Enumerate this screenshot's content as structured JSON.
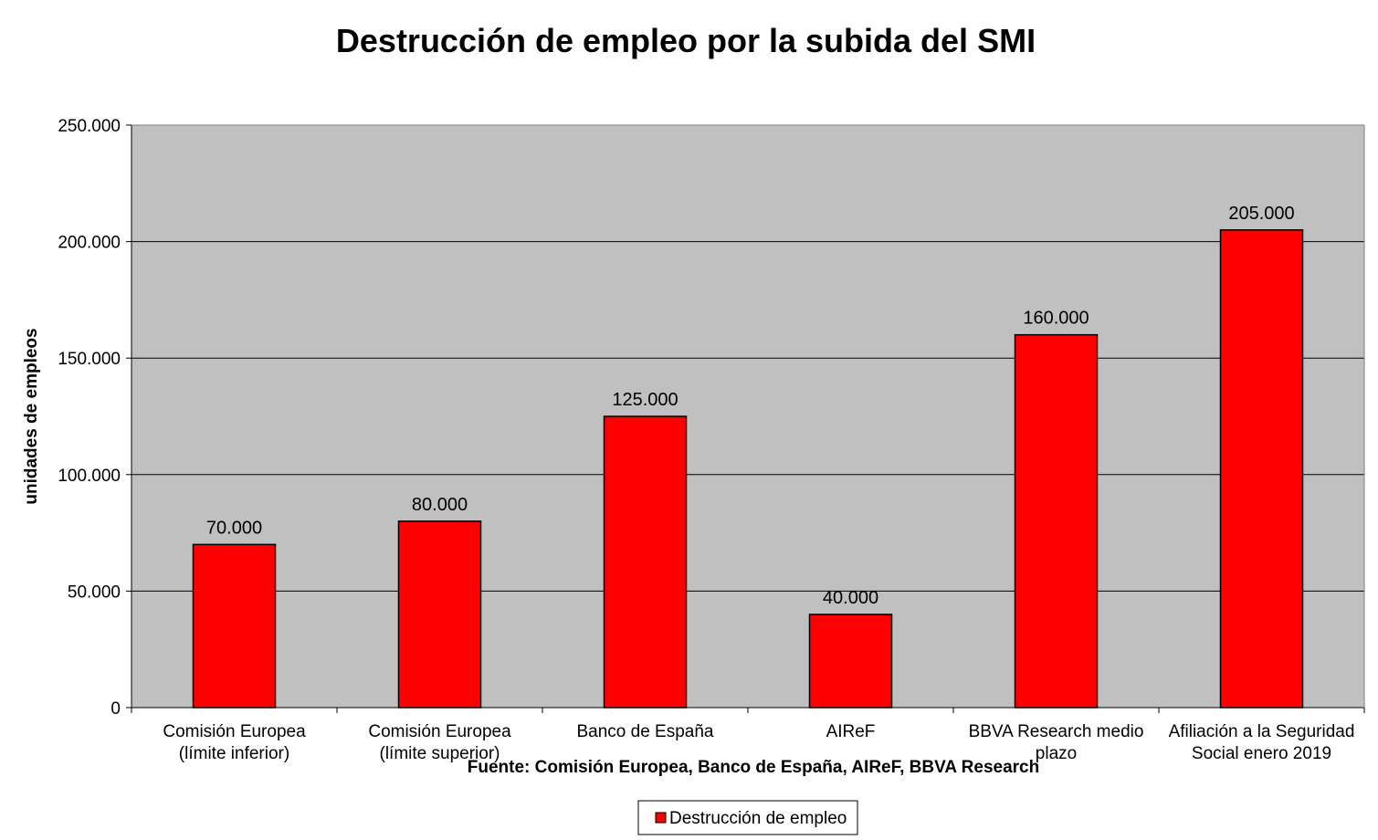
{
  "chart_data": {
    "type": "bar",
    "title": "Destrucción de empleo por la subida del SMI",
    "ylabel": "unidades de empleos",
    "xlabel": "",
    "source": "Fuente: Comisión Europea, Banco de España, AIReF, BBVA Research",
    "ylim": [
      0,
      250000
    ],
    "yticks": [
      0,
      50000,
      100000,
      150000,
      200000,
      250000
    ],
    "ytick_labels": [
      "0",
      "50.000",
      "100.000",
      "150.000",
      "200.000",
      "250.000"
    ],
    "categories": [
      [
        "Comisión Europea",
        "(límite inferior)"
      ],
      [
        "Comisión Europea",
        "(límite superior)"
      ],
      [
        "Banco de España"
      ],
      [
        "AIReF"
      ],
      [
        "BBVA Research medio",
        "plazo"
      ],
      [
        "Afiliación a la Seguridad",
        "Social enero 2019"
      ]
    ],
    "series": [
      {
        "name": "Destrucción de empleo",
        "color": "#ff0000",
        "values": [
          70000,
          80000,
          125000,
          40000,
          160000,
          205000
        ],
        "data_labels": [
          "70.000",
          "80.000",
          "125.000",
          "40.000",
          "160.000",
          "205.000"
        ]
      }
    ],
    "plot_background": "#c0c0c0",
    "grid": true,
    "legend_position": "bottom"
  }
}
